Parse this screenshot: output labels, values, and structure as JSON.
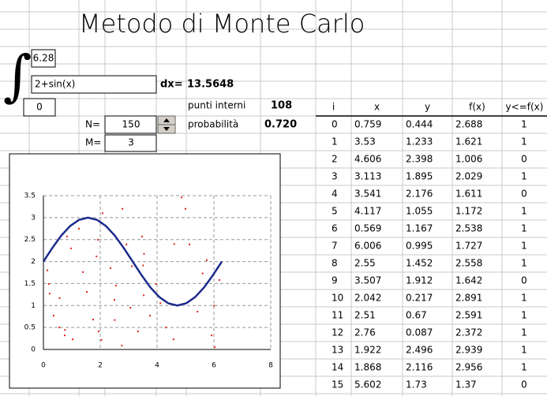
{
  "header": {
    "title": "Metodo di Monte Carlo"
  },
  "integral": {
    "upper": "6.28",
    "integrand": "2+sin(x)",
    "lower": "0",
    "dx_label": "dx=",
    "area": "13.5648"
  },
  "params": {
    "n_label": "N=",
    "n_value": "150",
    "m_label": "M=",
    "m_value": "3"
  },
  "stats": {
    "inside_label": "punti interni",
    "inside_value": "108",
    "prob_label": "probabilità",
    "prob_value": "0.720"
  },
  "table": {
    "headers": [
      "i",
      "x",
      "y",
      "f(x)",
      "y<=f(x)"
    ],
    "rows": [
      [
        "0",
        "0.759",
        "0.444",
        "2.688",
        "1"
      ],
      [
        "1",
        "3.53",
        "1.233",
        "1.621",
        "1"
      ],
      [
        "2",
        "4.606",
        "2.398",
        "1.006",
        "0"
      ],
      [
        "3",
        "3.113",
        "1.895",
        "2.029",
        "1"
      ],
      [
        "4",
        "3.541",
        "2.176",
        "1.611",
        "0"
      ],
      [
        "5",
        "4.117",
        "1.055",
        "1.172",
        "1"
      ],
      [
        "6",
        "0.569",
        "1.167",
        "2.538",
        "1"
      ],
      [
        "7",
        "6.006",
        "0.995",
        "1.727",
        "1"
      ],
      [
        "8",
        "2.55",
        "1.452",
        "2.558",
        "1"
      ],
      [
        "9",
        "3.507",
        "1.912",
        "1.642",
        "0"
      ],
      [
        "10",
        "2.042",
        "0.217",
        "2.891",
        "1"
      ],
      [
        "11",
        "2.51",
        "0.67",
        "2.591",
        "1"
      ],
      [
        "12",
        "2.76",
        "0.087",
        "2.372",
        "1"
      ],
      [
        "13",
        "1.922",
        "2.496",
        "2.939",
        "1"
      ],
      [
        "14",
        "1.868",
        "2.116",
        "2.956",
        "1"
      ],
      [
        "15",
        "5.602",
        "1.73",
        "1.37",
        "0"
      ]
    ]
  },
  "chart_data": {
    "type": "scatter",
    "xlim": [
      0,
      8
    ],
    "ylim": [
      0,
      3.5
    ],
    "xticks": [
      0,
      2,
      4,
      6,
      8
    ],
    "yticks": [
      0,
      0.5,
      1,
      1.5,
      2,
      2.5,
      3,
      3.5
    ],
    "grid": true,
    "series": [
      {
        "type": "line",
        "color": "#1c2a8c",
        "x": [
          0,
          0.314,
          0.628,
          0.942,
          1.256,
          1.57,
          1.884,
          2.198,
          2.512,
          2.826,
          3.14,
          3.454,
          3.768,
          4.082,
          4.396,
          4.71,
          5.024,
          5.338,
          5.652,
          5.966,
          6.28
        ],
        "values": [
          2,
          2.31,
          2.59,
          2.81,
          2.95,
          3,
          2.95,
          2.81,
          2.59,
          2.31,
          2,
          1.69,
          1.41,
          1.19,
          1.05,
          1,
          1.05,
          1.19,
          1.41,
          1.69,
          2
        ]
      },
      {
        "type": "scatter",
        "color": "#e02020",
        "x": [
          0.759,
          3.53,
          4.606,
          3.113,
          3.541,
          4.117,
          0.569,
          6.006,
          2.55,
          3.507,
          2.042,
          2.51,
          2.76,
          1.922,
          1.868,
          5.602,
          0.14,
          0.19,
          0.22,
          0.36,
          0.56,
          0.75,
          1.03,
          0.83,
          0.97,
          1.25,
          1.39,
          1.53,
          1.75,
          1.94,
          2.08,
          2.36,
          2.5,
          2.78,
          2.92,
          3.06,
          3.33,
          3.47,
          3.75,
          3.97,
          4.31,
          4.58,
          4.86,
          5.0,
          5.14,
          5.42,
          5.75,
          5.92,
          6.03,
          6.19
        ],
        "values": [
          0.444,
          1.233,
          2.398,
          1.895,
          2.176,
          1.055,
          1.167,
          0.995,
          1.452,
          1.912,
          0.217,
          0.67,
          0.087,
          2.496,
          2.116,
          1.73,
          1.8,
          1.49,
          1.27,
          0.77,
          0.5,
          0.32,
          0.23,
          2.57,
          2.3,
          2.75,
          1.76,
          1.31,
          0.68,
          0.41,
          3.1,
          1.85,
          1.13,
          3.2,
          2.39,
          0.95,
          0.41,
          2.57,
          0.77,
          1.49,
          0.5,
          0.23,
          3.46,
          3.2,
          2.39,
          0.86,
          2.03,
          0.32,
          0.05,
          1.58
        ]
      }
    ]
  }
}
